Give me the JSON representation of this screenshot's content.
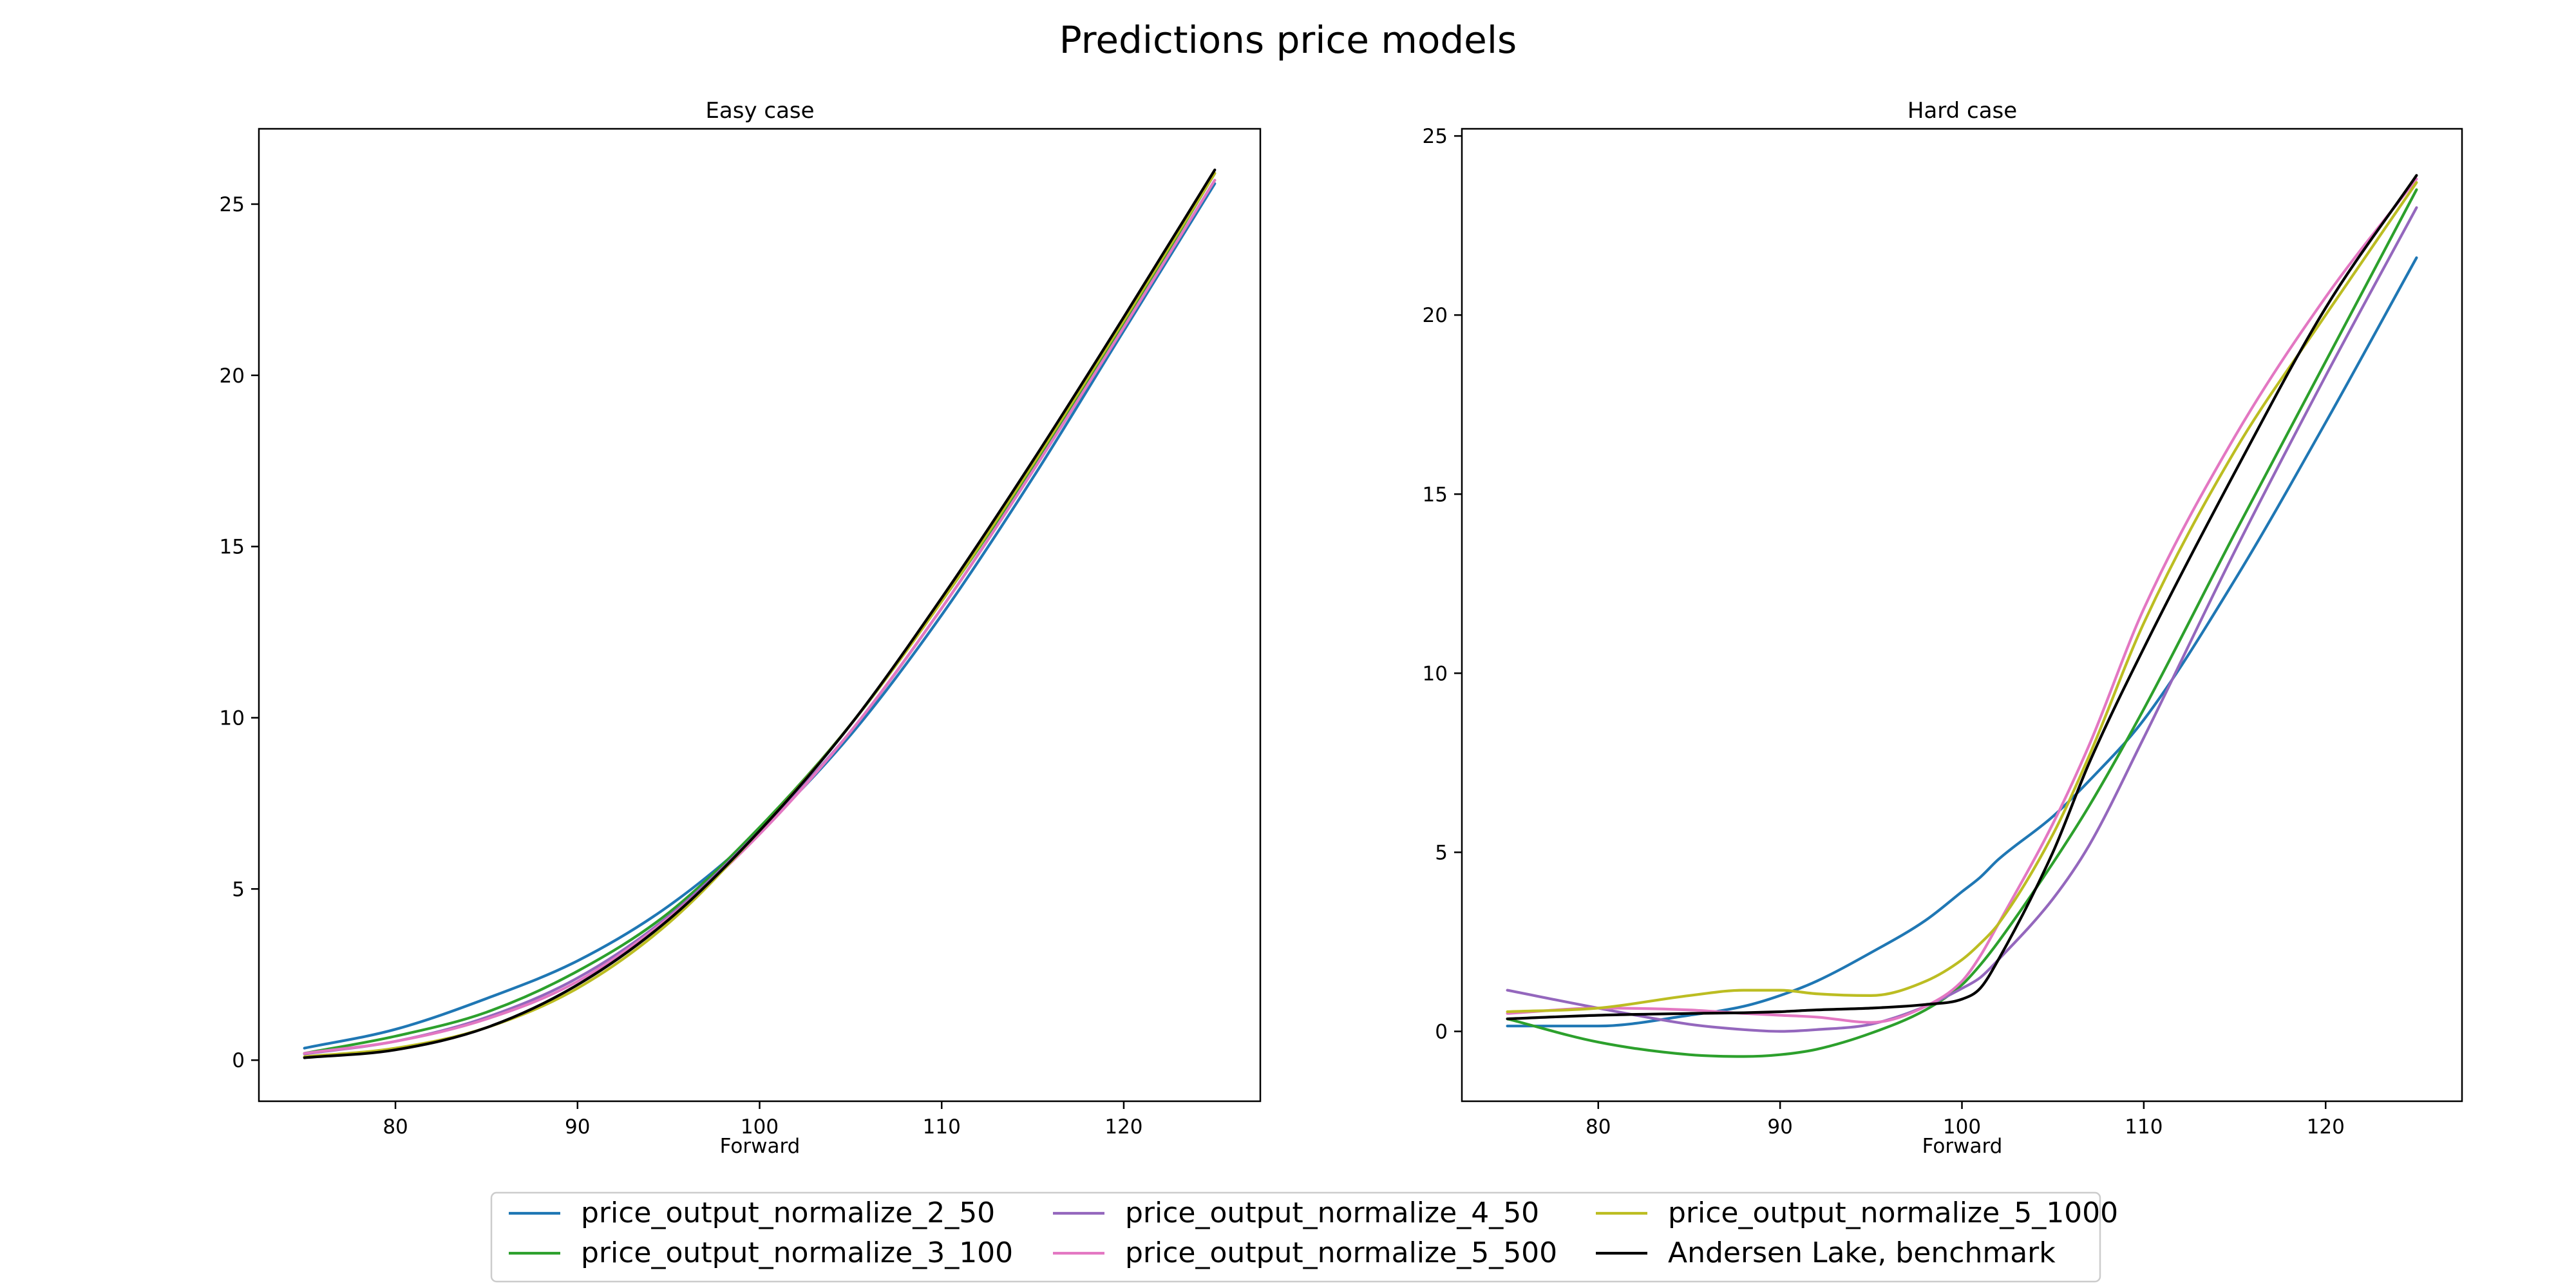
{
  "figure": {
    "title": "Predictions price models"
  },
  "legend": {
    "columns": 3,
    "entries": [
      {
        "name": "price_output_normalize_2_50",
        "color": "#1f77b4"
      },
      {
        "name": "price_output_normalize_3_100",
        "color": "#2ca02c"
      },
      {
        "name": "price_output_normalize_4_50",
        "color": "#9467bd"
      },
      {
        "name": "price_output_normalize_5_500",
        "color": "#e377c2"
      },
      {
        "name": "price_output_normalize_5_1000",
        "color": "#bcbd22"
      },
      {
        "name": "Andersen Lake, benchmark",
        "color": "#000000"
      }
    ]
  },
  "chart_data": [
    {
      "type": "line",
      "title": "Easy case",
      "xlabel": "Forward",
      "ylabel": "",
      "xlim": [
        72.5,
        127.5
      ],
      "ylim": [
        -1.2,
        27.2
      ],
      "xticks": [
        80,
        90,
        100,
        110,
        120
      ],
      "yticks": [
        0,
        5,
        10,
        15,
        20,
        25
      ],
      "grid": false,
      "x": [
        75,
        80,
        85,
        90,
        95,
        100,
        105,
        110,
        115,
        120,
        125
      ],
      "series": [
        {
          "name": "price_output_normalize_2_50",
          "color": "#1f77b4",
          "values": [
            0.35,
            0.9,
            1.8,
            2.9,
            4.5,
            6.7,
            9.5,
            13.0,
            17.0,
            21.3,
            25.6
          ]
        },
        {
          "name": "price_output_normalize_3_100",
          "color": "#2ca02c",
          "values": [
            0.2,
            0.7,
            1.4,
            2.6,
            4.3,
            6.8,
            9.8,
            13.4,
            17.3,
            21.5,
            25.9
          ]
        },
        {
          "name": "price_output_normalize_4_50",
          "color": "#9467bd",
          "values": [
            0.18,
            0.55,
            1.25,
            2.4,
            4.2,
            6.7,
            9.6,
            13.2,
            17.2,
            21.4,
            25.7
          ]
        },
        {
          "name": "price_output_normalize_5_500",
          "color": "#e377c2",
          "values": [
            0.2,
            0.55,
            1.2,
            2.3,
            4.15,
            6.6,
            9.6,
            13.2,
            17.2,
            21.4,
            25.7
          ]
        },
        {
          "name": "price_output_normalize_5_1000",
          "color": "#bcbd22",
          "values": [
            0.1,
            0.35,
            0.95,
            2.1,
            4.0,
            6.7,
            9.8,
            13.4,
            17.4,
            21.6,
            25.9
          ]
        },
        {
          "name": "Andersen Lake, benchmark",
          "color": "#000000",
          "values": [
            0.07,
            0.3,
            0.95,
            2.2,
            4.1,
            6.7,
            9.8,
            13.5,
            17.5,
            21.7,
            26.0
          ]
        }
      ]
    },
    {
      "type": "line",
      "title": "Hard case",
      "xlabel": "Forward",
      "ylabel": "",
      "xlim": [
        72.5,
        127.5
      ],
      "ylim": [
        -1.95,
        25.2
      ],
      "xticks": [
        80,
        90,
        100,
        110,
        120
      ],
      "yticks": [
        0,
        5,
        10,
        15,
        20,
        25
      ],
      "grid": false,
      "x": [
        75,
        80,
        85,
        88,
        90,
        92,
        95,
        98,
        100,
        101,
        102,
        105,
        107,
        110,
        115,
        120,
        125
      ],
      "series": [
        {
          "name": "price_output_normalize_2_50",
          "color": "#1f77b4",
          "values": [
            0.15,
            0.15,
            0.45,
            0.7,
            1.0,
            1.4,
            2.2,
            3.1,
            3.9,
            4.3,
            4.8,
            6.0,
            7.0,
            8.7,
            12.6,
            17.0,
            21.6
          ]
        },
        {
          "name": "price_output_normalize_3_100",
          "color": "#2ca02c",
          "values": [
            0.35,
            -0.3,
            -0.65,
            -0.7,
            -0.65,
            -0.5,
            -0.05,
            0.6,
            1.3,
            1.85,
            2.5,
            4.7,
            6.3,
            9.0,
            13.9,
            18.7,
            23.5
          ]
        },
        {
          "name": "price_output_normalize_4_50",
          "color": "#9467bd",
          "values": [
            1.15,
            0.65,
            0.2,
            0.05,
            0.0,
            0.05,
            0.2,
            0.7,
            1.2,
            1.5,
            2.0,
            3.7,
            5.2,
            8.2,
            13.4,
            18.3,
            23.0
          ]
        },
        {
          "name": "price_output_normalize_5_500",
          "color": "#e377c2",
          "values": [
            0.5,
            0.65,
            0.6,
            0.5,
            0.45,
            0.4,
            0.25,
            0.7,
            1.4,
            2.1,
            3.0,
            5.8,
            8.0,
            11.8,
            16.6,
            20.5,
            23.8
          ]
        },
        {
          "name": "price_output_normalize_5_1000",
          "color": "#bcbd22",
          "values": [
            0.55,
            0.65,
            1.0,
            1.15,
            1.15,
            1.05,
            1.0,
            1.4,
            2.0,
            2.45,
            3.0,
            5.5,
            7.7,
            11.4,
            16.2,
            20.0,
            23.7
          ]
        },
        {
          "name": "Andersen Lake, benchmark",
          "color": "#000000",
          "values": [
            0.35,
            0.45,
            0.5,
            0.52,
            0.55,
            0.6,
            0.65,
            0.75,
            0.9,
            1.2,
            2.0,
            5.0,
            7.5,
            10.7,
            15.6,
            20.2,
            23.9
          ]
        }
      ]
    }
  ]
}
